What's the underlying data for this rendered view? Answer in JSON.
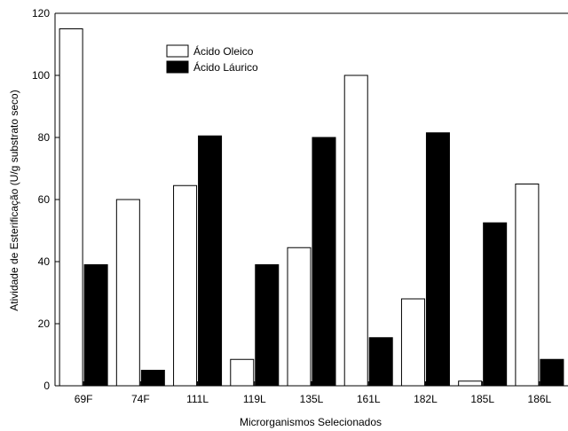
{
  "chart_data": {
    "type": "bar",
    "title": "",
    "xlabel": "Microrganismos Selecionados",
    "ylabel": "Atividade de Esterificação (U/g substrato seco)",
    "ylim": [
      0,
      120
    ],
    "yticks": [
      0,
      20,
      40,
      60,
      80,
      100,
      120
    ],
    "categories": [
      "69F",
      "74F",
      "111L",
      "119L",
      "135L",
      "161L",
      "182L",
      "185L",
      "186L"
    ],
    "series": [
      {
        "name": "Ácido Oleico",
        "color": "#ffffff",
        "values": [
          115,
          60,
          64.5,
          8.5,
          44.5,
          100,
          28,
          1.5,
          65
        ]
      },
      {
        "name": "Ácido Láurico",
        "color": "#000000",
        "values": [
          39,
          5,
          80.5,
          39,
          80,
          15.5,
          81.5,
          52.5,
          8.5
        ]
      }
    ],
    "legend_position": "top-center",
    "grid": false
  }
}
